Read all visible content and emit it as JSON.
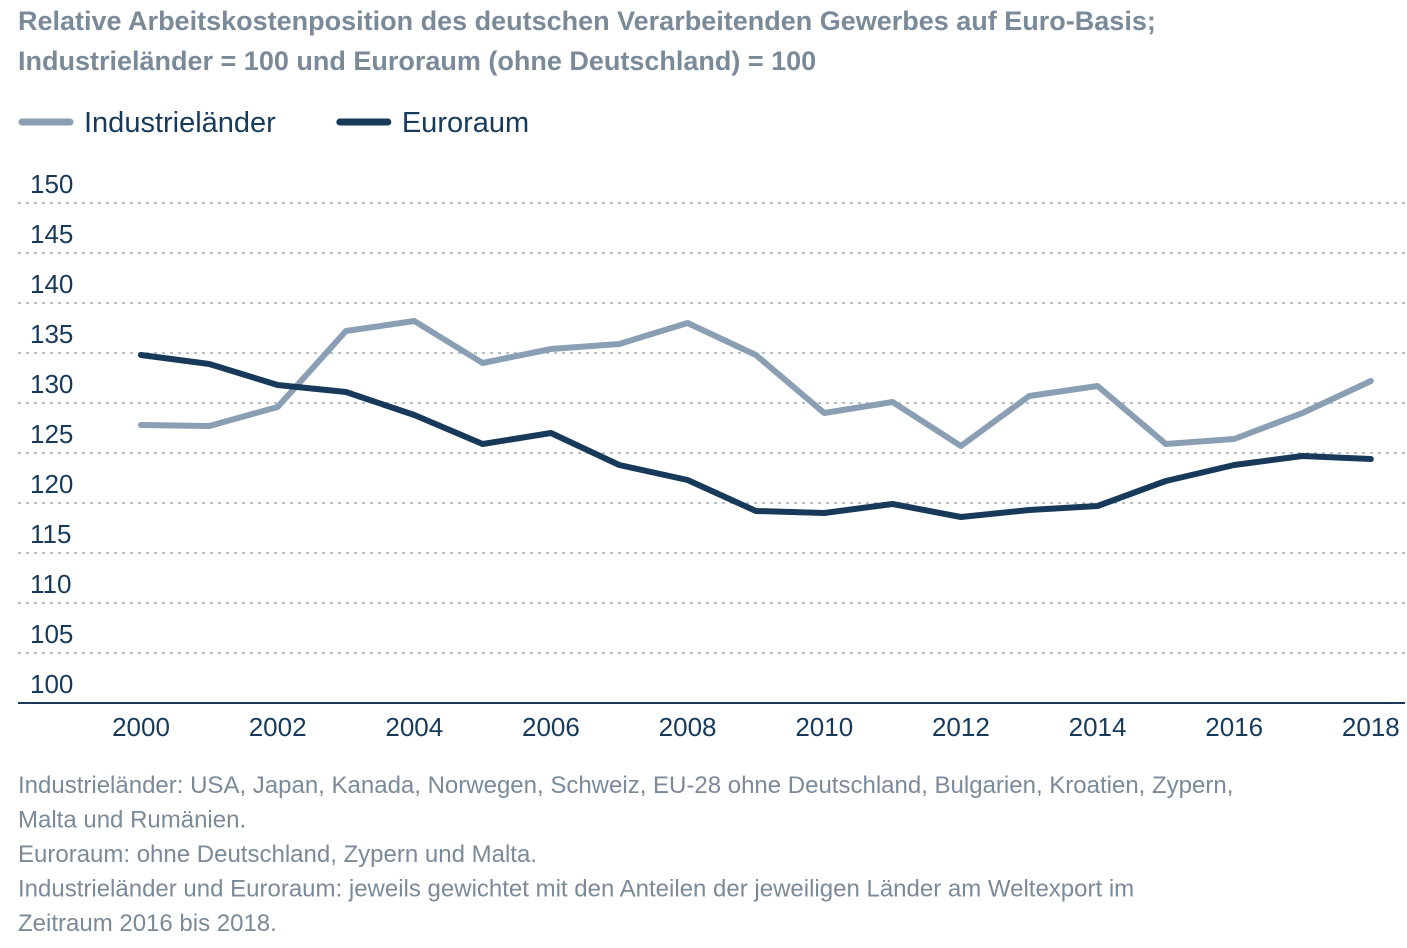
{
  "chart_data": {
    "type": "line",
    "title": "Relative Arbeitskostenposition des deutschen Verarbeitenden Gewerbes auf Euro-Basis;",
    "subtitle": "Industrieländer = 100 und Euroraum (ohne Deutschland) = 100",
    "x": [
      2000,
      2001,
      2002,
      2003,
      2004,
      2005,
      2006,
      2007,
      2008,
      2009,
      2010,
      2011,
      2012,
      2013,
      2014,
      2015,
      2016,
      2017,
      2018
    ],
    "series": [
      {
        "name": "Industrieländer",
        "color": "#8a9fb4",
        "values": [
          127.8,
          127.7,
          129.6,
          137.2,
          138.2,
          134.0,
          135.4,
          135.9,
          138.0,
          134.8,
          129.0,
          130.1,
          125.7,
          130.7,
          131.7,
          125.9,
          126.4,
          129.0,
          132.2
        ]
      },
      {
        "name": "Euroraum",
        "color": "#173a5a",
        "values": [
          134.8,
          133.9,
          131.8,
          131.1,
          128.8,
          125.9,
          127.0,
          123.8,
          122.3,
          119.2,
          119.0,
          119.9,
          118.6,
          119.3,
          119.7,
          122.2,
          123.8,
          124.7,
          124.4
        ]
      }
    ],
    "xlim": [
      1998.2,
      2018.5
    ],
    "xticks": [
      2000,
      2002,
      2004,
      2006,
      2008,
      2010,
      2012,
      2014,
      2016,
      2018
    ],
    "ylim": [
      100,
      150
    ],
    "yticks": [
      100,
      105,
      110,
      115,
      120,
      125,
      130,
      135,
      140,
      145,
      150
    ],
    "grid": true,
    "legend": "top-left",
    "notes": [
      "Industrieländer: USA, Japan, Kanada, Norwegen, Schweiz, EU-28 ohne Deutschland, Bulgarien, Kroatien, Zypern,",
      "Malta und Rumänien.",
      "Euroraum: ohne Deutschland, Zypern und Malta.",
      "Industrieländer und Euroraum: jeweils gewichtet mit den Anteilen der jeweiligen Länder am Weltexport im",
      "Zeitraum 2016 bis 2018."
    ]
  }
}
